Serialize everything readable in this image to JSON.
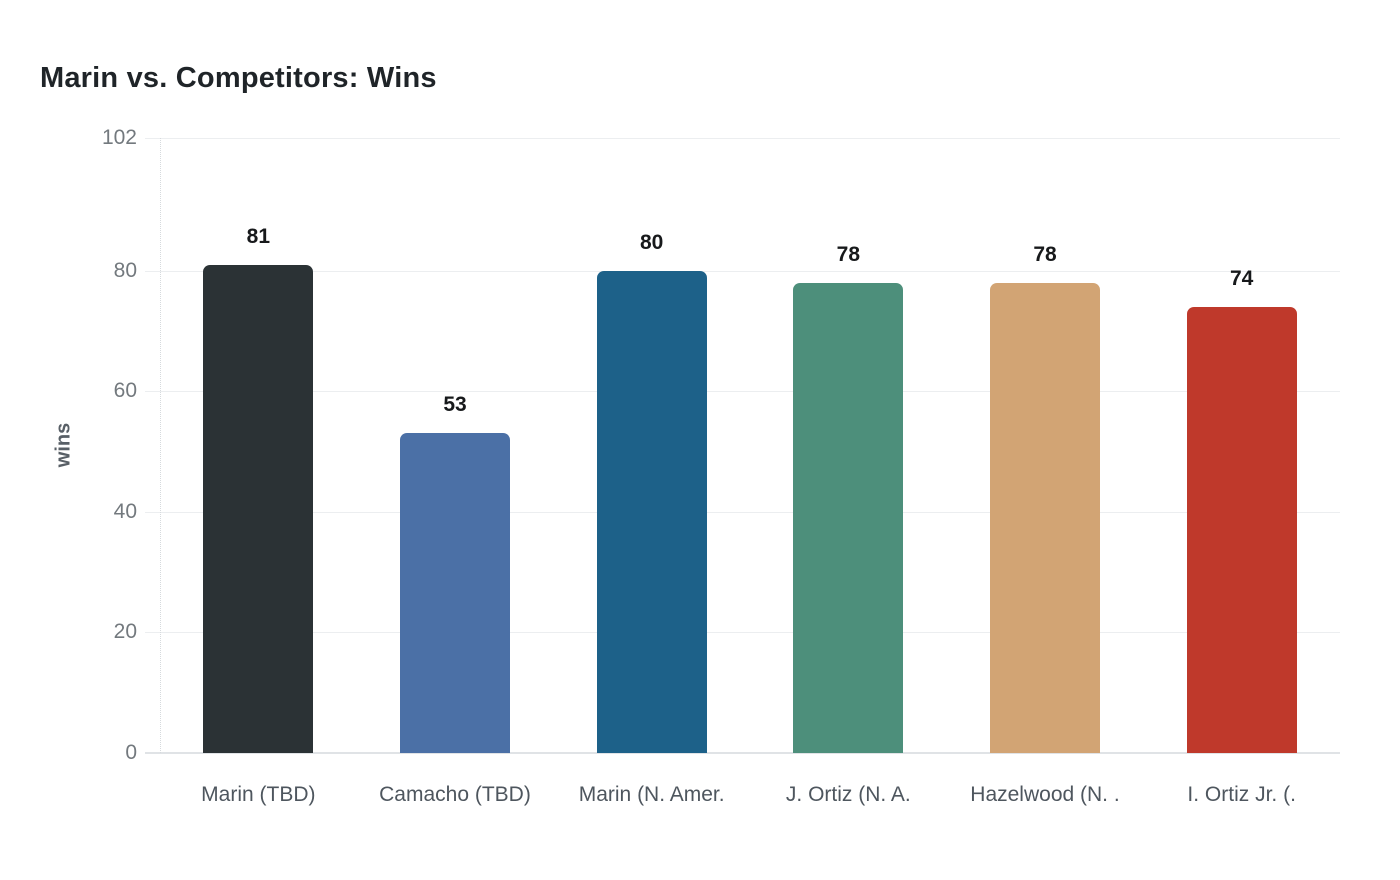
{
  "page": {
    "title": "Marin vs. Competitors: Wins"
  },
  "chart_data": {
    "type": "bar",
    "title": "Marin vs. Competitors: Wins",
    "categories": [
      "Marin (TBD)",
      "Camacho (TBD)",
      "Marin (N. Amer.",
      "J. Ortiz (N. A.",
      "Hazelwood (N. .",
      "I. Ortiz Jr. (."
    ],
    "values": [
      81,
      53,
      80,
      78,
      78,
      74
    ],
    "bar_colors": [
      "#2b3235",
      "#4b70a6",
      "#1d6189",
      "#4d8f7b",
      "#d2a474",
      "#bf392b"
    ],
    "value_labels": [
      81,
      53,
      80,
      78,
      78,
      74
    ],
    "xlabel": "",
    "ylabel": "wins",
    "ylim": [
      0,
      102
    ],
    "yticks": [
      0,
      20,
      40,
      60,
      80,
      102
    ],
    "grid": true,
    "legend": false,
    "colors": {
      "background": "#ffffff",
      "title_text": "#1f2428",
      "axis_tick_text": "#73797e",
      "category_text": "#4e565e",
      "value_label_text": "#17191b",
      "gridline": "#eceef0",
      "axis_baseline": "#e0e3e6"
    }
  }
}
